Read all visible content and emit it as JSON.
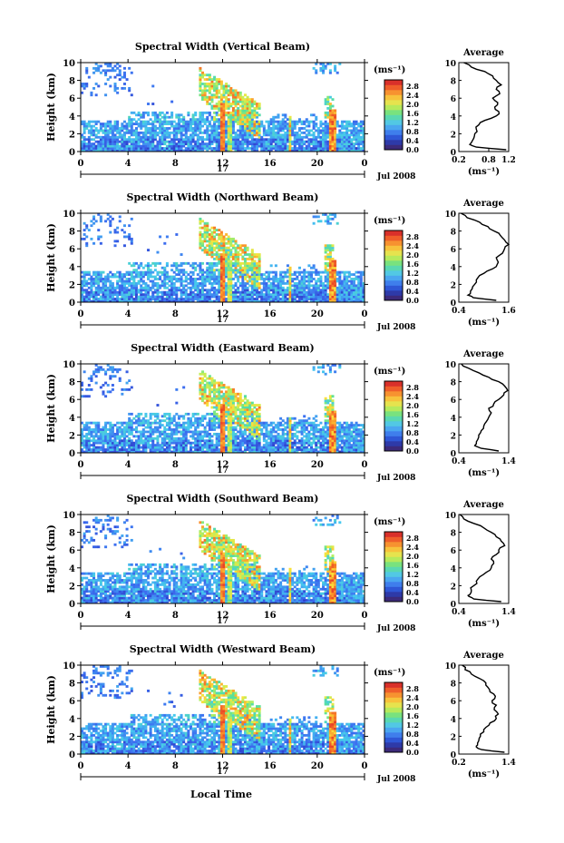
{
  "figure": {
    "xlabel": "Local Time",
    "day_label": "17",
    "date_label": "Jul 2008",
    "ylabel": "Height (km)",
    "avg_title": "Average",
    "unit_label": "(ms⁻¹)"
  },
  "chart_data": [
    {
      "type": "heatmap",
      "title": "Spectral Width (Vertical Beam)",
      "xlabel": "Local Time",
      "ylabel": "Height (km)",
      "xlim": [
        0,
        24
      ],
      "ylim": [
        0,
        10
      ],
      "xticks": [
        "0",
        "4",
        "8",
        "12",
        "16",
        "20",
        "0"
      ],
      "yticks": [
        "0",
        "2",
        "4",
        "6",
        "8",
        "10"
      ],
      "colorbar": {
        "label": "(ms⁻¹)",
        "range": [
          0,
          3.0
        ],
        "ticks": [
          "0.0",
          "0.4",
          "0.8",
          "1.2",
          "1.6",
          "2.0",
          "2.4",
          "2.8"
        ]
      },
      "profile": {
        "type": "line",
        "title": "Average",
        "xlabel": "(ms⁻¹)",
        "xlim": [
          0.2,
          1.2
        ],
        "xticks": [
          "0.2",
          "0.8",
          "1.2"
        ],
        "ylim": [
          0,
          10
        ],
        "heights": [
          0.2,
          0.5,
          0.8,
          1,
          1.5,
          2,
          2.5,
          3,
          3.5,
          4,
          4.5,
          5,
          5.5,
          6,
          6.5,
          7,
          7.5,
          8,
          8.5,
          9,
          9.5,
          10
        ],
        "values": [
          1.15,
          0.55,
          0.42,
          0.45,
          0.5,
          0.52,
          0.55,
          0.6,
          0.72,
          0.95,
          1.0,
          0.92,
          0.98,
          0.88,
          1.02,
          0.95,
          1.05,
          0.95,
          0.88,
          0.72,
          0.45,
          0.3
        ]
      }
    },
    {
      "type": "heatmap",
      "title": "Spectral Width (Northward Beam)",
      "xlabel": "Local Time",
      "ylabel": "Height (km)",
      "xlim": [
        0,
        24
      ],
      "ylim": [
        0,
        10
      ],
      "xticks": [
        "0",
        "4",
        "8",
        "12",
        "16",
        "20",
        "0"
      ],
      "yticks": [
        "0",
        "2",
        "4",
        "6",
        "8",
        "10"
      ],
      "colorbar": {
        "label": "(ms⁻¹)",
        "range": [
          0,
          3.0
        ],
        "ticks": [
          "0.0",
          "0.4",
          "0.8",
          "1.2",
          "1.6",
          "2.0",
          "2.4",
          "2.8"
        ]
      },
      "profile": {
        "type": "line",
        "title": "Average",
        "xlabel": "(ms⁻¹)",
        "xlim": [
          0.4,
          1.6
        ],
        "xticks": [
          "0.4",
          "1.6"
        ],
        "ylim": [
          0,
          10
        ],
        "heights": [
          0.2,
          0.5,
          0.8,
          1,
          1.5,
          2,
          2.5,
          3,
          3.5,
          4,
          4.5,
          5,
          5.5,
          6,
          6.5,
          7,
          7.5,
          8,
          8.5,
          9,
          9.5,
          10
        ],
        "values": [
          1.3,
          0.75,
          0.62,
          0.68,
          0.72,
          0.78,
          0.82,
          0.9,
          1.08,
          1.3,
          1.35,
          1.3,
          1.45,
          1.5,
          1.62,
          1.5,
          1.4,
          1.25,
          1.1,
          0.9,
          0.6,
          0.45
        ]
      }
    },
    {
      "type": "heatmap",
      "title": "Spectral Width (Eastward Beam)",
      "xlabel": "Local Time",
      "ylabel": "Height (km)",
      "xlim": [
        0,
        24
      ],
      "ylim": [
        0,
        10
      ],
      "xticks": [
        "0",
        "4",
        "8",
        "12",
        "16",
        "20",
        "0"
      ],
      "yticks": [
        "0",
        "2",
        "4",
        "6",
        "8",
        "10"
      ],
      "colorbar": {
        "label": "(ms⁻¹)",
        "range": [
          0,
          3.0
        ],
        "ticks": [
          "0.0",
          "0.4",
          "0.8",
          "1.2",
          "1.6",
          "2.0",
          "2.4",
          "2.8"
        ]
      },
      "profile": {
        "type": "line",
        "title": "Average",
        "xlabel": "(ms⁻¹)",
        "xlim": [
          0.4,
          1.4
        ],
        "xticks": [
          "0.4",
          "1.4"
        ],
        "ylim": [
          0,
          10
        ],
        "heights": [
          0.2,
          0.5,
          0.8,
          1,
          1.5,
          2,
          2.5,
          3,
          3.5,
          4,
          4.5,
          5,
          5.5,
          6,
          6.5,
          7,
          7.5,
          8,
          8.5,
          9,
          9.5,
          10
        ],
        "values": [
          1.2,
          0.85,
          0.72,
          0.75,
          0.78,
          0.8,
          0.85,
          0.9,
          0.95,
          1.0,
          1.05,
          1.0,
          1.1,
          1.2,
          1.3,
          1.38,
          1.32,
          1.2,
          1.0,
          0.8,
          0.6,
          0.45
        ]
      }
    },
    {
      "type": "heatmap",
      "title": "Spectral Width (Southward Beam)",
      "xlabel": "Local Time",
      "ylabel": "Height (km)",
      "xlim": [
        0,
        24
      ],
      "ylim": [
        0,
        10
      ],
      "xticks": [
        "0",
        "4",
        "8",
        "12",
        "16",
        "20",
        "0"
      ],
      "yticks": [
        "0",
        "2",
        "4",
        "6",
        "8",
        "10"
      ],
      "colorbar": {
        "label": "(ms⁻¹)",
        "range": [
          0,
          3.0
        ],
        "ticks": [
          "0.0",
          "0.4",
          "0.8",
          "1.2",
          "1.6",
          "2.0",
          "2.4",
          "2.8"
        ]
      },
      "profile": {
        "type": "line",
        "title": "Average",
        "xlabel": "(ms⁻¹)",
        "xlim": [
          0.4,
          1.4
        ],
        "xticks": [
          "0.4",
          "1.4"
        ],
        "ylim": [
          0,
          10
        ],
        "heights": [
          0.2,
          0.5,
          0.8,
          1,
          1.5,
          2,
          2.5,
          3,
          3.5,
          4,
          4.5,
          5,
          5.5,
          6,
          6.5,
          7,
          7.5,
          8,
          8.5,
          9,
          9.5,
          10
        ],
        "values": [
          1.25,
          0.7,
          0.6,
          0.62,
          0.65,
          0.7,
          0.75,
          0.82,
          0.95,
          1.05,
          1.1,
          1.05,
          1.15,
          1.2,
          1.32,
          1.25,
          1.15,
          1.05,
          0.9,
          0.7,
          0.5,
          0.42
        ]
      }
    },
    {
      "type": "heatmap",
      "title": "Spectral Width (Westward Beam)",
      "xlabel": "Local Time",
      "ylabel": "Height (km)",
      "xlim": [
        0,
        24
      ],
      "ylim": [
        0,
        10
      ],
      "xticks": [
        "0",
        "4",
        "8",
        "12",
        "16",
        "20",
        "0"
      ],
      "yticks": [
        "0",
        "2",
        "4",
        "6",
        "8",
        "10"
      ],
      "colorbar": {
        "label": "(ms⁻¹)",
        "range": [
          0,
          3.0
        ],
        "ticks": [
          "0.0",
          "0.4",
          "0.8",
          "1.2",
          "1.6",
          "2.0",
          "2.4",
          "2.8"
        ]
      },
      "profile": {
        "type": "line",
        "title": "Average",
        "xlabel": "(ms⁻¹)",
        "xlim": [
          0.2,
          1.4
        ],
        "xticks": [
          "0.2",
          "1.4"
        ],
        "ylim": [
          0,
          10
        ],
        "heights": [
          0.2,
          0.5,
          0.8,
          1,
          1.5,
          2,
          2.5,
          3,
          3.5,
          4,
          4.5,
          5,
          5.5,
          6,
          6.5,
          7,
          7.5,
          8,
          8.5,
          9,
          9.5,
          10
        ],
        "values": [
          1.3,
          0.75,
          0.62,
          0.65,
          0.68,
          0.72,
          0.8,
          0.85,
          0.95,
          1.1,
          1.15,
          1.05,
          1.1,
          1.0,
          1.08,
          0.95,
          0.9,
          0.85,
          0.7,
          0.5,
          0.35,
          0.28
        ]
      }
    }
  ]
}
